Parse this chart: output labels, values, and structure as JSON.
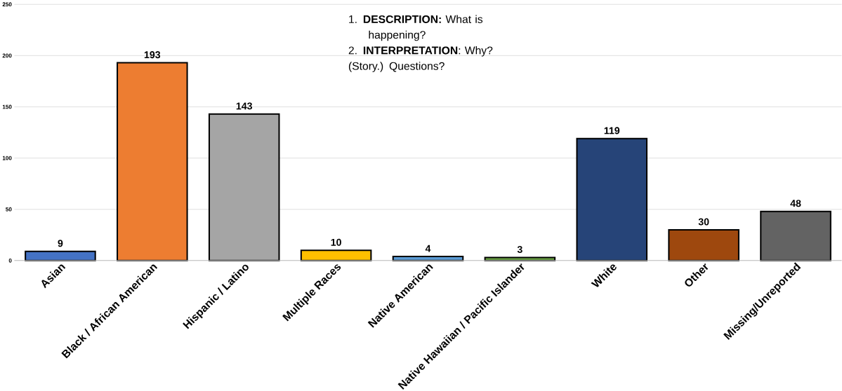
{
  "chart_data": {
    "type": "bar",
    "categories": [
      "Asian",
      "Black / African American",
      "Hispanic / Latino",
      "Multiple Races",
      "Native American",
      "Native Hawaiian / Pacific Islander",
      "White",
      "Other",
      "Missing/Unreported"
    ],
    "values": [
      9,
      193,
      143,
      10,
      4,
      3,
      119,
      30,
      48
    ],
    "colors": [
      "#4472c4",
      "#ed7d31",
      "#a5a5a5",
      "#ffc000",
      "#5b9bd5",
      "#70ad47",
      "#264478",
      "#9e480e",
      "#636363"
    ],
    "ylim": [
      0,
      250
    ],
    "yticks": [
      0,
      50,
      100,
      150,
      200,
      250
    ],
    "grid": "y",
    "data_labels": true,
    "annotations": [
      "1. **DESCRIPTION:** What is happening?",
      "2. **INTERPRETATION**: Why? (Story.) Questions?"
    ]
  }
}
